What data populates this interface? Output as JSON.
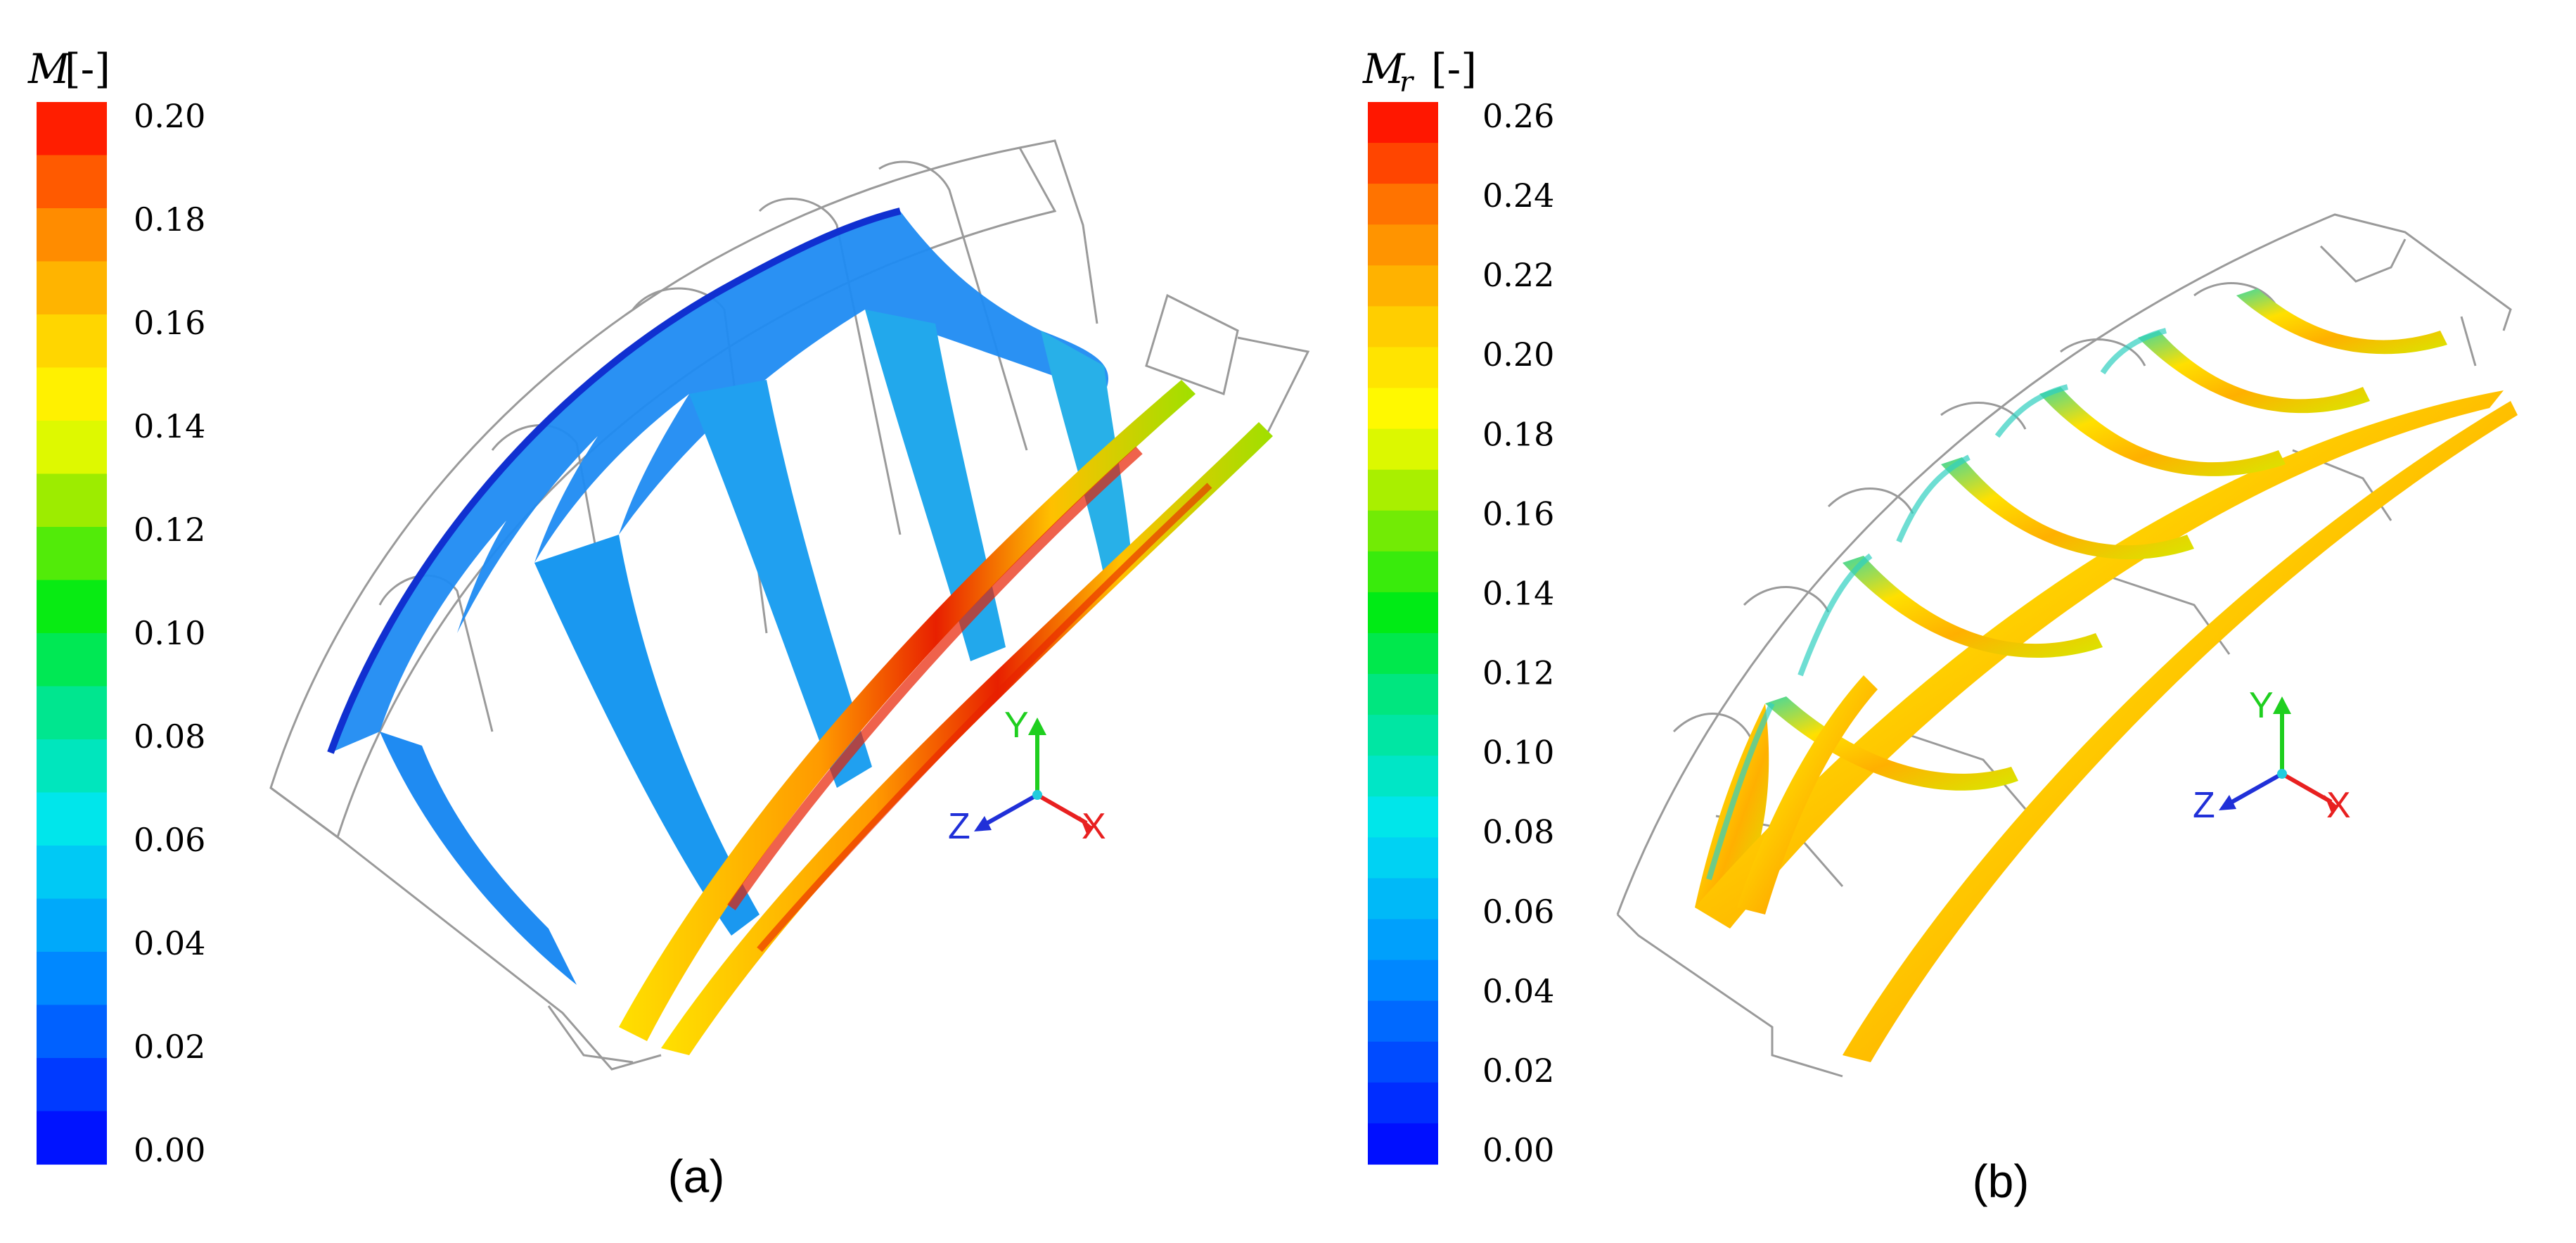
{
  "panels": [
    {
      "id": "a",
      "caption": "(a)",
      "colorbar": {
        "title_symbol": "M",
        "title_subscript": "",
        "title_unit": "[-]",
        "tick_labels": [
          "0.20",
          "0.18",
          "0.16",
          "0.14",
          "0.12",
          "0.10",
          "0.08",
          "0.06",
          "0.04",
          "0.02",
          "0.00"
        ],
        "bands": 20
      },
      "axes": {
        "x": "X",
        "y": "Y",
        "z": "Z"
      }
    },
    {
      "id": "b",
      "caption": "(b)",
      "colorbar": {
        "title_symbol": "M",
        "title_subscript": "r",
        "title_unit": "[-]",
        "tick_labels": [
          "0.26",
          "0.24",
          "0.22",
          "0.20",
          "0.18",
          "0.16",
          "0.14",
          "0.12",
          "0.10",
          "0.08",
          "0.06",
          "0.04",
          "0.02",
          "0.00"
        ],
        "bands": 26
      },
      "axes": {
        "x": "X",
        "y": "Y",
        "z": "Z"
      }
    }
  ],
  "colors": {
    "wireframe": "#9a9a9a",
    "axis_x": "#e8202a",
    "axis_y": "#1fcf1f",
    "axis_z": "#2030d8",
    "axis_origin": "#22ccdd"
  }
}
